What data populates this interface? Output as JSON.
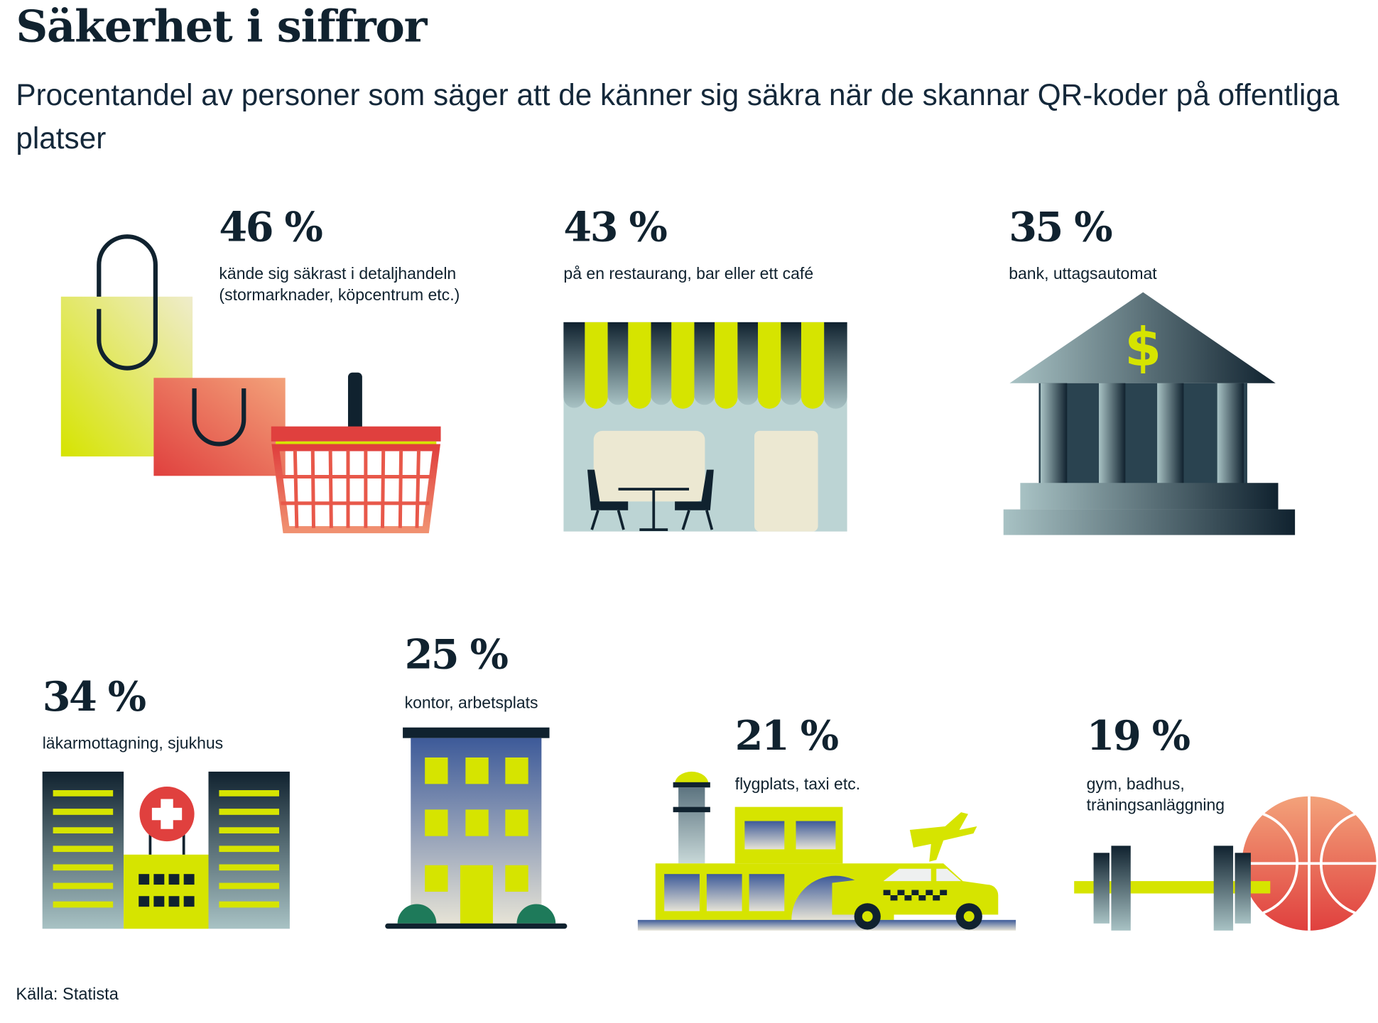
{
  "title": "Säkerhet i siffror",
  "subtitle": "Procentandel av personer som säger att de känner sig säkra när de skannar QR-koder på offentliga platser",
  "colors": {
    "accent_yellow": "#d6e400",
    "dark_navy": "#10222f",
    "red": "#e0403e",
    "slate": "#5d7480"
  },
  "chart_data": {
    "type": "table",
    "title": "Säkerhet i siffror",
    "subtitle": "Procentandel av personer som säger att de känner sig säkra när de skannar QR-koder på offentliga platser",
    "items": [
      {
        "value": "46 %",
        "label_lines": [
          "kände sig säkrast i detaljhandeln",
          "(stormarknader, köpcentrum etc.)"
        ],
        "icon": "shopping-bags-basket-icon"
      },
      {
        "value": "43 %",
        "label_lines": [
          "på en restaurang, bar eller ett café"
        ],
        "icon": "cafe-storefront-icon"
      },
      {
        "value": "35 %",
        "label_lines": [
          "bank, uttagsautomat"
        ],
        "icon": "bank-building-icon"
      },
      {
        "value": "34 %",
        "label_lines": [
          "läkarmottagning, sjukhus"
        ],
        "icon": "hospital-icon"
      },
      {
        "value": "25 %",
        "label_lines": [
          "kontor, arbetsplats"
        ],
        "icon": "office-building-icon"
      },
      {
        "value": "21 %",
        "label_lines": [
          "flygplats, taxi etc."
        ],
        "icon": "airport-taxi-icon"
      },
      {
        "value": "19 %",
        "label_lines": [
          "gym, badhus,",
          "träningsanläggning"
        ],
        "icon": "dumbbell-ball-icon"
      }
    ]
  },
  "source": "Källa: Statista"
}
